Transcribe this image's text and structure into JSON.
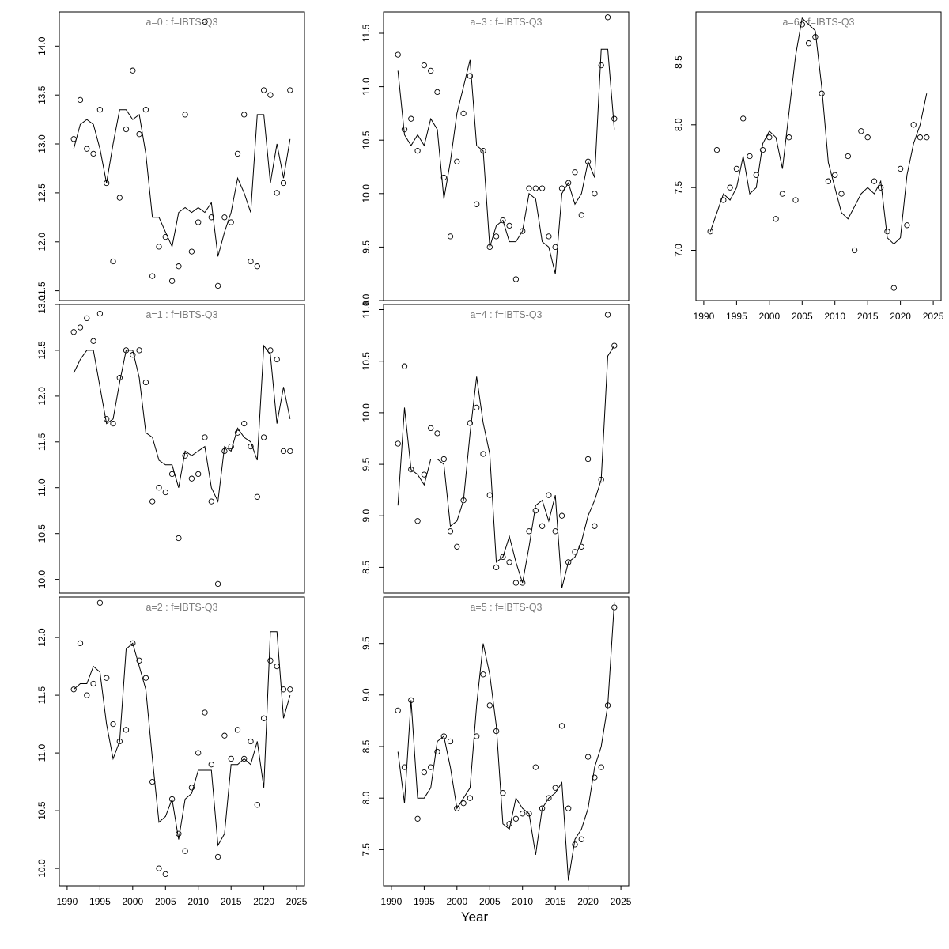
{
  "chart_data": {
    "type": "line",
    "description": "Seven-panel survey index fit plot: open circles are observations, solid line is model fit, per age a=0..6 for fleet IBTS-Q3",
    "shared": {
      "xlabel": "Year",
      "xlim": [
        1988.8,
        2026.2
      ],
      "xticks": [
        1990,
        1995,
        2000,
        2005,
        2010,
        2015,
        2020,
        2025
      ],
      "years": [
        1991,
        1992,
        1993,
        1994,
        1995,
        1996,
        1997,
        1998,
        1999,
        2000,
        2001,
        2002,
        2003,
        2004,
        2005,
        2006,
        2007,
        2008,
        2009,
        2010,
        2011,
        2012,
        2013,
        2014,
        2015,
        2016,
        2017,
        2018,
        2019,
        2020,
        2021,
        2022,
        2023,
        2024
      ],
      "grid": false,
      "legend": "none",
      "point_style": "open-circle",
      "line_color": "#000000",
      "axis_color": "#000000",
      "title_color": "#7d7d7d"
    },
    "panels": [
      {
        "id": "a0",
        "title": "a=0 : f=IBTS-Q3",
        "ylim": [
          11.4,
          14.35
        ],
        "yticks": [
          11.5,
          12.0,
          12.5,
          13.0,
          13.5,
          14.0
        ],
        "show_x_axis": false,
        "fit_line": [
          12.95,
          13.2,
          13.25,
          13.2,
          12.95,
          12.6,
          13.0,
          13.35,
          13.35,
          13.25,
          13.3,
          12.9,
          12.25,
          12.25,
          12.1,
          11.95,
          12.3,
          12.35,
          12.3,
          12.35,
          12.3,
          12.4,
          11.85,
          12.1,
          12.3,
          12.65,
          12.5,
          12.3,
          13.3,
          13.3,
          12.6,
          13.0,
          12.65,
          13.05
        ],
        "observations": [
          13.05,
          13.45,
          12.95,
          12.9,
          13.35,
          12.6,
          11.8,
          12.45,
          13.15,
          13.75,
          13.1,
          13.35,
          11.65,
          11.95,
          12.05,
          11.6,
          11.75,
          13.3,
          11.9,
          12.2,
          14.25,
          12.25,
          11.55,
          12.25,
          12.2,
          12.9,
          13.3,
          11.8,
          11.75,
          13.55,
          13.5,
          12.5,
          12.6,
          13.55
        ]
      },
      {
        "id": "a3",
        "title": "a=3 : f=IBTS-Q3",
        "ylim": [
          9.0,
          11.7
        ],
        "yticks": [
          9.0,
          9.5,
          10.0,
          10.5,
          11.0,
          11.5
        ],
        "show_x_axis": false,
        "fit_line": [
          11.15,
          10.55,
          10.45,
          10.55,
          10.45,
          10.7,
          10.6,
          9.95,
          10.3,
          10.75,
          11.0,
          11.25,
          10.45,
          10.4,
          9.5,
          9.7,
          9.75,
          9.55,
          9.55,
          9.65,
          10.0,
          9.95,
          9.55,
          9.5,
          9.25,
          10.0,
          10.1,
          9.9,
          10.0,
          10.3,
          10.15,
          11.35,
          11.35,
          10.6
        ],
        "observations": [
          11.3,
          10.6,
          10.7,
          10.4,
          11.2,
          11.15,
          10.95,
          10.15,
          9.6,
          10.3,
          10.75,
          11.1,
          9.9,
          10.4,
          9.5,
          9.6,
          9.75,
          9.7,
          9.2,
          9.65,
          10.05,
          10.05,
          10.05,
          9.6,
          9.5,
          10.05,
          10.1,
          10.2,
          9.8,
          10.3,
          10.0,
          11.2,
          11.65,
          10.7
        ]
      },
      {
        "id": "a6",
        "title": "a=6 : f=IBTS-Q3",
        "ylim": [
          6.6,
          8.9
        ],
        "yticks": [
          7.0,
          7.5,
          8.0,
          8.5
        ],
        "show_x_axis": true,
        "fit_line": [
          7.15,
          7.3,
          7.45,
          7.4,
          7.5,
          7.75,
          7.45,
          7.5,
          7.85,
          7.95,
          7.9,
          7.65,
          8.1,
          8.55,
          8.85,
          8.8,
          8.75,
          8.3,
          7.7,
          7.5,
          7.3,
          7.25,
          7.35,
          7.45,
          7.5,
          7.45,
          7.55,
          7.1,
          7.05,
          7.1,
          7.6,
          7.85,
          8.0,
          8.25
        ],
        "observations": [
          7.15,
          7.8,
          7.4,
          7.5,
          7.65,
          8.05,
          7.75,
          7.6,
          7.8,
          7.9,
          7.25,
          7.45,
          7.9,
          7.4,
          8.8,
          8.65,
          8.7,
          8.25,
          7.55,
          7.6,
          7.45,
          7.75,
          7.0,
          7.95,
          7.9,
          7.55,
          7.5,
          7.15,
          6.7,
          7.65,
          7.2,
          8.0,
          7.9,
          7.9
        ]
      },
      {
        "id": "a1",
        "title": "a=1 : f=IBTS-Q3",
        "ylim": [
          9.85,
          13.0
        ],
        "yticks": [
          10.0,
          10.5,
          11.0,
          11.5,
          12.0,
          12.5,
          13.0
        ],
        "show_x_axis": false,
        "fit_line": [
          12.25,
          12.4,
          12.5,
          12.5,
          12.1,
          11.7,
          11.75,
          12.15,
          12.5,
          12.5,
          12.2,
          11.6,
          11.55,
          11.3,
          11.25,
          11.25,
          11.0,
          11.4,
          11.35,
          11.4,
          11.45,
          11.0,
          10.85,
          11.45,
          11.4,
          11.65,
          11.55,
          11.5,
          11.3,
          12.55,
          12.45,
          11.7,
          12.1,
          11.75
        ],
        "observations": [
          12.7,
          12.75,
          12.85,
          12.6,
          12.9,
          11.75,
          11.7,
          12.2,
          12.5,
          12.45,
          12.5,
          12.15,
          10.85,
          11.0,
          10.95,
          11.15,
          10.45,
          11.35,
          11.1,
          11.15,
          11.55,
          10.85,
          9.95,
          11.4,
          11.45,
          11.6,
          11.7,
          11.45,
          10.9,
          11.55,
          12.5,
          12.4,
          11.4,
          11.4
        ]
      },
      {
        "id": "a4",
        "title": "a=4 : f=IBTS-Q3",
        "ylim": [
          8.25,
          11.05
        ],
        "yticks": [
          8.5,
          9.0,
          9.5,
          10.0,
          10.5,
          11.0
        ],
        "show_x_axis": false,
        "fit_line": [
          9.1,
          10.05,
          9.45,
          9.4,
          9.3,
          9.55,
          9.55,
          9.5,
          8.9,
          8.95,
          9.15,
          9.8,
          10.35,
          9.9,
          9.6,
          8.55,
          8.6,
          8.8,
          8.55,
          8.35,
          8.7,
          9.1,
          9.15,
          8.95,
          9.2,
          8.3,
          8.55,
          8.6,
          8.75,
          9.0,
          9.15,
          9.35,
          10.55,
          10.65
        ],
        "observations": [
          9.7,
          10.45,
          9.45,
          8.95,
          9.4,
          9.85,
          9.8,
          9.55,
          8.85,
          8.7,
          9.15,
          9.9,
          10.05,
          9.6,
          9.2,
          8.5,
          8.6,
          8.55,
          8.35,
          8.35,
          8.85,
          9.05,
          8.9,
          9.2,
          8.85,
          9.0,
          8.55,
          8.65,
          8.7,
          9.55,
          8.9,
          9.35,
          10.95,
          10.65
        ]
      },
      {
        "id": "a2",
        "title": "a=2 : f=IBTS-Q3",
        "ylim": [
          9.85,
          12.35
        ],
        "yticks": [
          10.0,
          10.5,
          11.0,
          11.5,
          12.0
        ],
        "show_x_axis": true,
        "fit_line": [
          11.55,
          11.6,
          11.6,
          11.75,
          11.7,
          11.25,
          10.95,
          11.1,
          11.9,
          11.95,
          11.75,
          11.55,
          10.95,
          10.4,
          10.45,
          10.6,
          10.25,
          10.6,
          10.65,
          10.85,
          10.85,
          10.85,
          10.2,
          10.3,
          10.9,
          10.9,
          10.95,
          10.9,
          11.1,
          10.7,
          12.05,
          12.05,
          11.3,
          11.5
        ],
        "observations": [
          11.55,
          11.95,
          11.5,
          11.6,
          12.3,
          11.65,
          11.25,
          11.1,
          11.2,
          11.95,
          11.8,
          11.65,
          10.75,
          10.0,
          9.95,
          10.6,
          10.3,
          10.15,
          10.7,
          11.0,
          11.35,
          10.9,
          10.1,
          11.15,
          10.95,
          11.2,
          10.95,
          11.1,
          10.55,
          11.3,
          11.8,
          11.75,
          11.55,
          11.55
        ]
      },
      {
        "id": "a5",
        "title": "a=5 : f=IBTS-Q3",
        "ylim": [
          7.15,
          9.95
        ],
        "yticks": [
          7.5,
          8.0,
          8.5,
          9.0,
          9.5
        ],
        "show_x_axis": true,
        "fit_line": [
          8.45,
          7.95,
          8.95,
          8.0,
          8.0,
          8.1,
          8.55,
          8.6,
          8.3,
          7.9,
          8.0,
          8.1,
          8.9,
          9.5,
          9.2,
          8.7,
          7.75,
          7.7,
          8.0,
          7.9,
          7.85,
          7.45,
          7.9,
          8.0,
          8.05,
          8.15,
          7.2,
          7.6,
          7.7,
          7.9,
          8.3,
          8.5,
          8.9,
          9.9
        ],
        "observations": [
          8.85,
          8.3,
          8.95,
          7.8,
          8.25,
          8.3,
          8.45,
          8.6,
          8.55,
          7.9,
          7.95,
          8.0,
          8.6,
          9.2,
          8.9,
          8.65,
          8.05,
          7.75,
          7.8,
          7.85,
          7.85,
          8.3,
          7.9,
          8.0,
          8.1,
          8.7,
          7.9,
          7.55,
          7.6,
          8.4,
          8.2,
          8.3,
          8.9,
          9.85
        ]
      }
    ]
  }
}
